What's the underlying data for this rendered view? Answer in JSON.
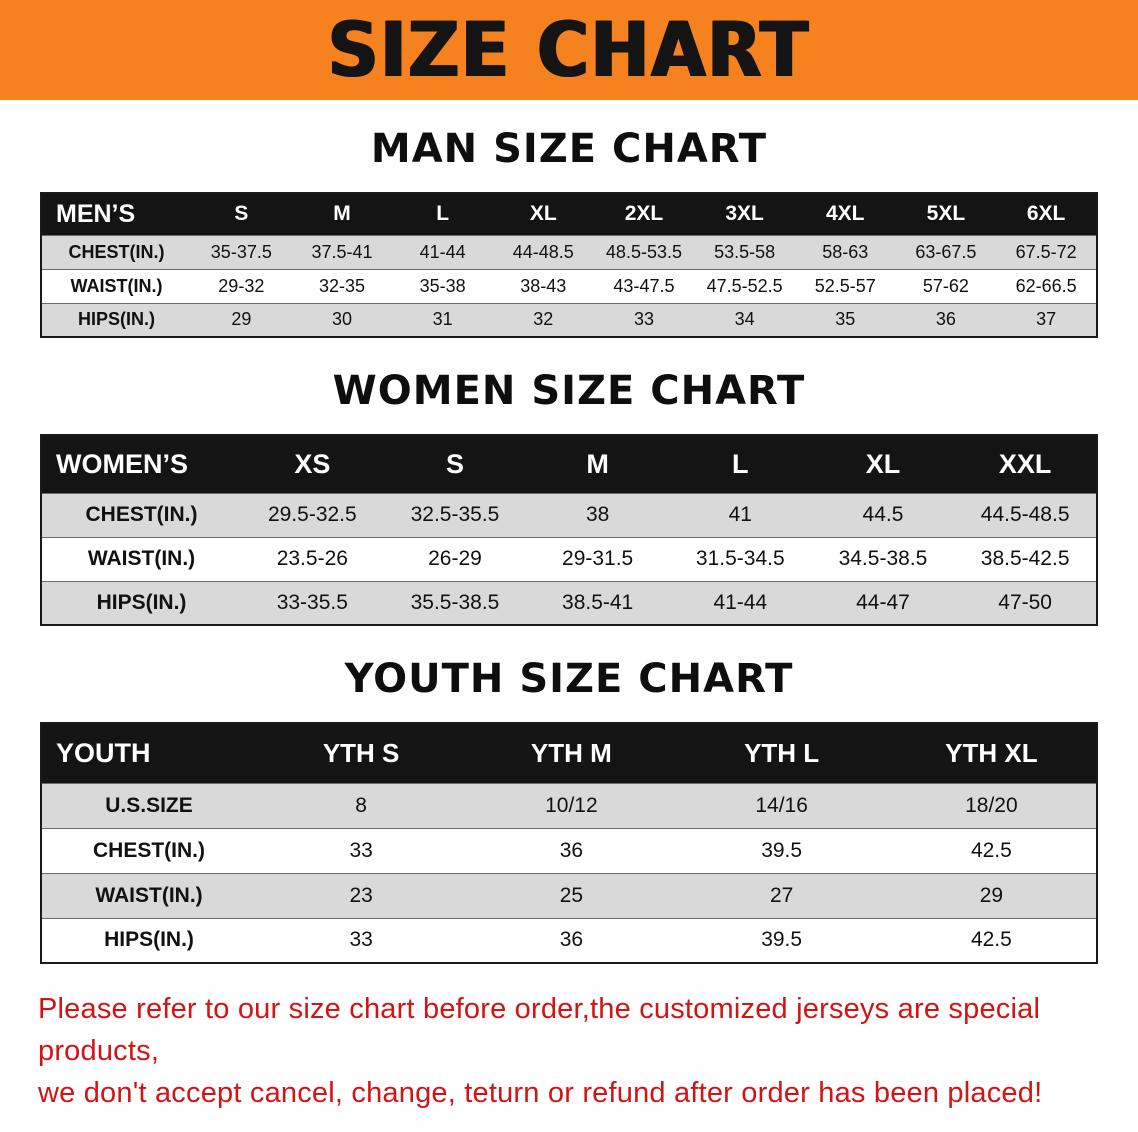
{
  "banner": {
    "title": "SIZE CHART",
    "bg_color": "#f5821f",
    "text_color": "#141414"
  },
  "colors": {
    "table_header_bg": "#141414",
    "table_header_text": "#ffffff",
    "row_alt": "#d9d9d9",
    "footer_text": "#d31414"
  },
  "sections": [
    {
      "heading": "MAN SIZE CHART",
      "table": {
        "header": [
          "MEN’S",
          "S",
          "M",
          "L",
          "XL",
          "2XL",
          "3XL",
          "4XL",
          "5XL",
          "6XL"
        ],
        "rows": [
          [
            "CHEST(IN.)",
            "35-37.5",
            "37.5-41",
            "41-44",
            "44-48.5",
            "48.5-53.5",
            "53.5-58",
            "58-63",
            "63-67.5",
            "67.5-72"
          ],
          [
            "WAIST(IN.)",
            "29-32",
            "32-35",
            "35-38",
            "38-43",
            "43-47.5",
            "47.5-52.5",
            "52.5-57",
            "57-62",
            "62-66.5"
          ],
          [
            "HIPS(IN.)",
            "29",
            "30",
            "31",
            "32",
            "33",
            "34",
            "35",
            "36",
            "37"
          ]
        ]
      }
    },
    {
      "heading": "WOMEN SIZE CHART",
      "table": {
        "header": [
          "WOMEN’S",
          "XS",
          "S",
          "M",
          "L",
          "XL",
          "XXL"
        ],
        "rows": [
          [
            "CHEST(IN.)",
            "29.5-32.5",
            "32.5-35.5",
            "38",
            "41",
            "44.5",
            "44.5-48.5"
          ],
          [
            "WAIST(IN.)",
            "23.5-26",
            "26-29",
            "29-31.5",
            "31.5-34.5",
            "34.5-38.5",
            "38.5-42.5"
          ],
          [
            "HIPS(IN.)",
            "33-35.5",
            "35.5-38.5",
            "38.5-41",
            "41-44",
            "44-47",
            "47-50"
          ]
        ]
      }
    },
    {
      "heading": "YOUTH SIZE CHART",
      "table": {
        "header": [
          "YOUTH",
          "YTH S",
          "YTH M",
          "YTH L",
          "YTH XL"
        ],
        "rows": [
          [
            "U.S.SIZE",
            "8",
            "10/12",
            "14/16",
            "18/20"
          ],
          [
            "CHEST(IN.)",
            "33",
            "36",
            "39.5",
            "42.5"
          ],
          [
            "WAIST(IN.)",
            "23",
            "25",
            "27",
            "29"
          ],
          [
            "HIPS(IN.)",
            "33",
            "36",
            "39.5",
            "42.5"
          ]
        ]
      }
    }
  ],
  "footer": {
    "line1": "Please refer to our size chart before order,the customized jerseys are special products,",
    "line2": "we don't accept cancel, change, teturn or refund after order has been placed!"
  }
}
